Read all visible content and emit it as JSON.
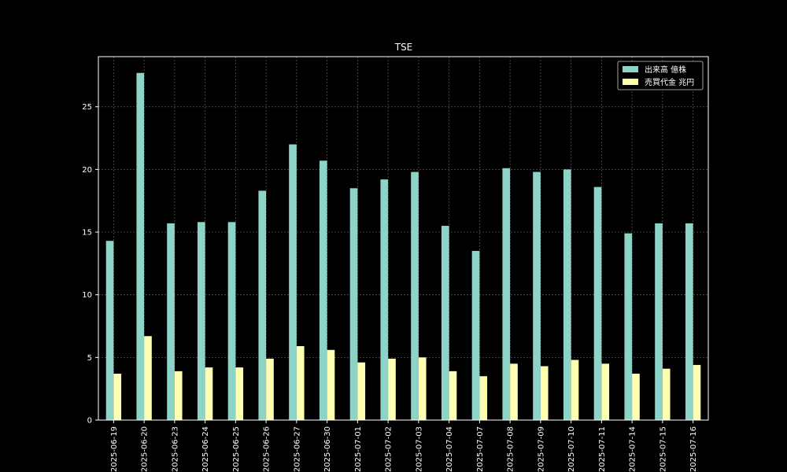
{
  "chart_data": {
    "type": "bar",
    "title": "TSE",
    "xlabel": "",
    "ylabel": "",
    "ylim": [
      0,
      29
    ],
    "yticks": [
      0,
      5,
      10,
      15,
      20,
      25
    ],
    "grid": true,
    "legend_position": "top-right",
    "categories": [
      "2025-06-19",
      "2025-06-20",
      "2025-06-23",
      "2025-06-24",
      "2025-06-25",
      "2025-06-26",
      "2025-06-27",
      "2025-06-30",
      "2025-07-01",
      "2025-07-02",
      "2025-07-03",
      "2025-07-04",
      "2025-07-07",
      "2025-07-08",
      "2025-07-09",
      "2025-07-10",
      "2025-07-11",
      "2025-07-14",
      "2025-07-15",
      "2025-07-16"
    ],
    "series": [
      {
        "name": "出来高 億株",
        "color": "#8dd3c7",
        "values": [
          14.3,
          27.7,
          15.7,
          15.8,
          15.8,
          18.3,
          22.0,
          20.7,
          18.5,
          19.2,
          19.8,
          15.5,
          13.5,
          20.1,
          19.8,
          20.0,
          18.6,
          14.9,
          15.7,
          15.7
        ]
      },
      {
        "name": "売買代金 兆円",
        "color": "#ffffb3",
        "values": [
          3.7,
          6.7,
          3.9,
          4.2,
          4.2,
          4.9,
          5.9,
          5.6,
          4.6,
          4.9,
          5.0,
          3.9,
          3.5,
          4.5,
          4.3,
          4.8,
          4.5,
          3.7,
          4.1,
          4.4
        ]
      }
    ]
  }
}
